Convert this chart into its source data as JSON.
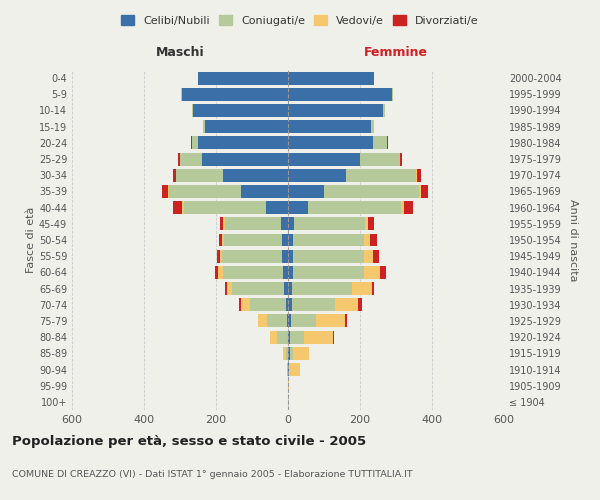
{
  "age_groups": [
    "100+",
    "95-99",
    "90-94",
    "85-89",
    "80-84",
    "75-79",
    "70-74",
    "65-69",
    "60-64",
    "55-59",
    "50-54",
    "45-49",
    "40-44",
    "35-39",
    "30-34",
    "25-29",
    "20-24",
    "15-19",
    "10-14",
    "5-9",
    "0-4"
  ],
  "birth_years": [
    "≤ 1904",
    "1905-1909",
    "1910-1914",
    "1915-1919",
    "1920-1924",
    "1925-1929",
    "1930-1934",
    "1935-1939",
    "1940-1944",
    "1945-1949",
    "1950-1954",
    "1955-1959",
    "1960-1964",
    "1965-1969",
    "1970-1974",
    "1975-1979",
    "1980-1984",
    "1985-1989",
    "1990-1994",
    "1995-1999",
    "2000-2004"
  ],
  "colors": {
    "celibi": "#3a6fa8",
    "coniugati": "#b5c99a",
    "vedovi": "#f5c86e",
    "divorziati": "#cc2222"
  },
  "males": {
    "celibi": [
      0,
      0,
      0,
      0,
      0,
      2,
      5,
      10,
      15,
      18,
      18,
      20,
      60,
      130,
      180,
      240,
      250,
      230,
      265,
      295,
      250
    ],
    "coniugati": [
      0,
      0,
      2,
      5,
      30,
      55,
      100,
      145,
      165,
      165,
      160,
      155,
      230,
      200,
      130,
      60,
      18,
      5,
      2,
      2,
      0
    ],
    "vedovi": [
      0,
      0,
      2,
      8,
      20,
      25,
      25,
      15,
      15,
      5,
      5,
      5,
      5,
      2,
      2,
      0,
      0,
      0,
      0,
      0,
      0
    ],
    "divorziati": [
      0,
      0,
      0,
      0,
      0,
      2,
      5,
      5,
      8,
      8,
      8,
      8,
      25,
      18,
      8,
      5,
      2,
      2,
      0,
      0,
      0
    ]
  },
  "females": {
    "celibi": [
      0,
      0,
      2,
      5,
      5,
      8,
      10,
      12,
      15,
      15,
      15,
      18,
      55,
      100,
      160,
      200,
      235,
      230,
      265,
      290,
      240
    ],
    "coniugati": [
      0,
      0,
      2,
      8,
      40,
      70,
      120,
      165,
      195,
      195,
      195,
      195,
      260,
      265,
      195,
      110,
      40,
      10,
      5,
      2,
      0
    ],
    "vedovi": [
      0,
      2,
      30,
      45,
      80,
      80,
      65,
      55,
      45,
      25,
      18,
      10,
      8,
      5,
      2,
      2,
      0,
      0,
      0,
      0,
      0
    ],
    "divorziati": [
      0,
      0,
      0,
      0,
      2,
      5,
      10,
      8,
      18,
      18,
      18,
      15,
      25,
      18,
      12,
      5,
      2,
      0,
      0,
      0,
      0
    ]
  },
  "xlim": 600,
  "title": "Popolazione per età, sesso e stato civile - 2005",
  "subtitle": "COMUNE DI CREAZZO (VI) - Dati ISTAT 1° gennaio 2005 - Elaborazione TUTTITALIA.IT",
  "ylabel_left": "Fasce di età",
  "ylabel_right": "Anni di nascita",
  "xlabel_left": "Maschi",
  "xlabel_right": "Femmine",
  "bg_color": "#f0f0eb",
  "legend_labels": [
    "Celibi/Nubili",
    "Coniugati/e",
    "Vedovi/e",
    "Divorziati/e"
  ]
}
